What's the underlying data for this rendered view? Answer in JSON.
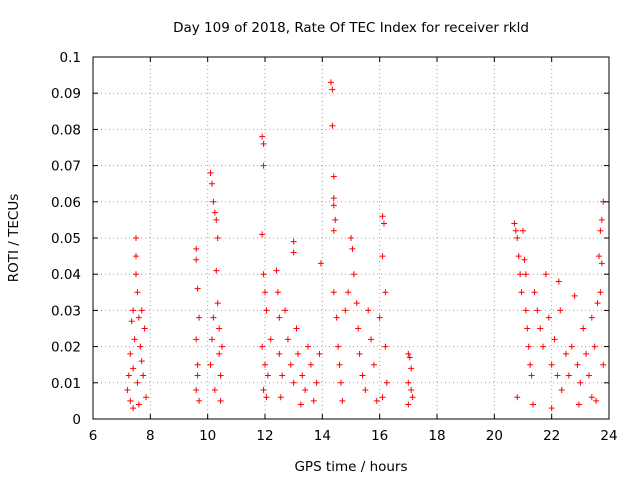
{
  "chart_data": {
    "type": "scatter",
    "title": "Day 109 of 2018, Rate Of TEC Index for receiver rkld",
    "xlabel": "GPS time / hours",
    "ylabel": "ROTI / TECUs",
    "xlim": [
      6,
      24
    ],
    "ylim": [
      0,
      0.1
    ],
    "x_ticks": [
      "6",
      "8",
      "10",
      "12",
      "14",
      "16",
      "18",
      "20",
      "22",
      "24"
    ],
    "y_ticks": [
      "0",
      "0.01",
      "0.02",
      "0.03",
      "0.04",
      "0.05",
      "0.06",
      "0.07",
      "0.08",
      "0.09",
      "0.1"
    ],
    "grid": true,
    "marker": "plus",
    "color": "#ff0000",
    "series": [
      {
        "name": "ROTI",
        "points": [
          [
            7.2,
            0.008
          ],
          [
            7.25,
            0.012
          ],
          [
            7.3,
            0.018
          ],
          [
            7.3,
            0.005
          ],
          [
            7.35,
            0.027
          ],
          [
            7.4,
            0.03
          ],
          [
            7.4,
            0.014
          ],
          [
            7.45,
            0.022
          ],
          [
            7.5,
            0.045
          ],
          [
            7.5,
            0.05
          ],
          [
            7.5,
            0.04
          ],
          [
            7.55,
            0.035
          ],
          [
            7.55,
            0.01
          ],
          [
            7.6,
            0.028
          ],
          [
            7.65,
            0.02
          ],
          [
            7.7,
            0.03
          ],
          [
            7.75,
            0.012
          ],
          [
            7.8,
            0.025
          ],
          [
            7.85,
            0.006
          ],
          [
            7.4,
            0.003
          ],
          [
            7.6,
            0.004
          ],
          [
            7.7,
            0.016
          ],
          [
            9.6,
            0.047
          ],
          [
            9.6,
            0.044
          ],
          [
            9.65,
            0.036
          ],
          [
            9.7,
            0.028
          ],
          [
            9.65,
            0.015
          ],
          [
            9.6,
            0.008
          ],
          [
            9.7,
            0.005
          ],
          [
            9.65,
            0.012
          ],
          [
            9.6,
            0.022
          ],
          [
            10.1,
            0.068
          ],
          [
            10.15,
            0.065
          ],
          [
            10.2,
            0.06
          ],
          [
            10.25,
            0.057
          ],
          [
            10.3,
            0.055
          ],
          [
            10.3,
            0.041
          ],
          [
            10.35,
            0.032
          ],
          [
            10.35,
            0.05
          ],
          [
            10.2,
            0.028
          ],
          [
            10.4,
            0.025
          ],
          [
            10.4,
            0.018
          ],
          [
            10.45,
            0.012
          ],
          [
            10.5,
            0.02
          ],
          [
            10.1,
            0.015
          ],
          [
            10.25,
            0.008
          ],
          [
            10.45,
            0.005
          ],
          [
            10.15,
            0.022
          ],
          [
            11.9,
            0.078
          ],
          [
            11.95,
            0.076
          ],
          [
            11.95,
            0.07
          ],
          [
            11.9,
            0.051
          ],
          [
            11.95,
            0.04
          ],
          [
            12.0,
            0.035
          ],
          [
            12.05,
            0.03
          ],
          [
            11.9,
            0.02
          ],
          [
            12.0,
            0.015
          ],
          [
            12.1,
            0.012
          ],
          [
            11.95,
            0.008
          ],
          [
            12.05,
            0.006
          ],
          [
            12.2,
            0.022
          ],
          [
            12.4,
            0.041
          ],
          [
            12.45,
            0.035
          ],
          [
            12.5,
            0.028
          ],
          [
            12.5,
            0.018
          ],
          [
            12.6,
            0.012
          ],
          [
            12.7,
            0.03
          ],
          [
            12.8,
            0.022
          ],
          [
            12.9,
            0.015
          ],
          [
            13.0,
            0.049
          ],
          [
            13.0,
            0.046
          ],
          [
            13.0,
            0.01
          ],
          [
            13.1,
            0.025
          ],
          [
            13.15,
            0.018
          ],
          [
            13.3,
            0.012
          ],
          [
            13.4,
            0.008
          ],
          [
            13.5,
            0.02
          ],
          [
            13.6,
            0.015
          ],
          [
            13.7,
            0.005
          ],
          [
            13.8,
            0.01
          ],
          [
            13.9,
            0.018
          ],
          [
            13.95,
            0.043
          ],
          [
            12.55,
            0.006
          ],
          [
            13.25,
            0.004
          ],
          [
            14.3,
            0.093
          ],
          [
            14.35,
            0.091
          ],
          [
            14.35,
            0.081
          ],
          [
            14.4,
            0.067
          ],
          [
            14.4,
            0.061
          ],
          [
            14.4,
            0.059
          ],
          [
            14.45,
            0.055
          ],
          [
            14.4,
            0.052
          ],
          [
            14.4,
            0.035
          ],
          [
            14.5,
            0.028
          ],
          [
            14.55,
            0.02
          ],
          [
            14.6,
            0.015
          ],
          [
            14.65,
            0.01
          ],
          [
            14.7,
            0.005
          ],
          [
            14.8,
            0.03
          ],
          [
            14.9,
            0.035
          ],
          [
            15.0,
            0.05
          ],
          [
            15.05,
            0.047
          ],
          [
            15.1,
            0.04
          ],
          [
            15.2,
            0.032
          ],
          [
            15.25,
            0.025
          ],
          [
            15.3,
            0.018
          ],
          [
            15.4,
            0.012
          ],
          [
            15.5,
            0.008
          ],
          [
            15.6,
            0.03
          ],
          [
            15.7,
            0.022
          ],
          [
            15.8,
            0.015
          ],
          [
            15.9,
            0.005
          ],
          [
            16.0,
            0.028
          ],
          [
            16.1,
            0.056
          ],
          [
            16.15,
            0.054
          ],
          [
            16.1,
            0.045
          ],
          [
            16.2,
            0.035
          ],
          [
            16.2,
            0.02
          ],
          [
            16.25,
            0.01
          ],
          [
            16.1,
            0.006
          ],
          [
            17.0,
            0.018
          ],
          [
            17.05,
            0.017
          ],
          [
            17.1,
            0.014
          ],
          [
            17.0,
            0.01
          ],
          [
            17.1,
            0.008
          ],
          [
            17.0,
            0.004
          ],
          [
            17.15,
            0.006
          ],
          [
            20.7,
            0.054
          ],
          [
            20.75,
            0.052
          ],
          [
            20.8,
            0.05
          ],
          [
            20.85,
            0.045
          ],
          [
            20.9,
            0.04
          ],
          [
            20.95,
            0.035
          ],
          [
            21.0,
            0.052
          ],
          [
            21.05,
            0.044
          ],
          [
            21.1,
            0.04
          ],
          [
            21.1,
            0.03
          ],
          [
            21.15,
            0.025
          ],
          [
            21.2,
            0.02
          ],
          [
            21.25,
            0.015
          ],
          [
            21.3,
            0.012
          ],
          [
            21.4,
            0.035
          ],
          [
            21.5,
            0.03
          ],
          [
            21.6,
            0.025
          ],
          [
            21.7,
            0.02
          ],
          [
            21.8,
            0.04
          ],
          [
            21.9,
            0.028
          ],
          [
            22.0,
            0.015
          ],
          [
            22.1,
            0.022
          ],
          [
            22.2,
            0.012
          ],
          [
            22.25,
            0.038
          ],
          [
            22.3,
            0.03
          ],
          [
            22.35,
            0.008
          ],
          [
            22.5,
            0.018
          ],
          [
            22.6,
            0.012
          ],
          [
            22.7,
            0.02
          ],
          [
            22.8,
            0.034
          ],
          [
            22.9,
            0.015
          ],
          [
            23.0,
            0.01
          ],
          [
            23.1,
            0.025
          ],
          [
            23.2,
            0.018
          ],
          [
            23.3,
            0.012
          ],
          [
            23.4,
            0.028
          ],
          [
            23.5,
            0.02
          ],
          [
            23.55,
            0.005
          ],
          [
            23.6,
            0.032
          ],
          [
            23.65,
            0.045
          ],
          [
            23.7,
            0.052
          ],
          [
            23.75,
            0.055
          ],
          [
            23.8,
            0.06
          ],
          [
            23.75,
            0.043
          ],
          [
            23.7,
            0.035
          ],
          [
            23.8,
            0.015
          ],
          [
            20.8,
            0.006
          ],
          [
            21.35,
            0.004
          ],
          [
            22.0,
            0.003
          ],
          [
            22.95,
            0.004
          ],
          [
            23.4,
            0.006
          ]
        ]
      }
    ]
  }
}
